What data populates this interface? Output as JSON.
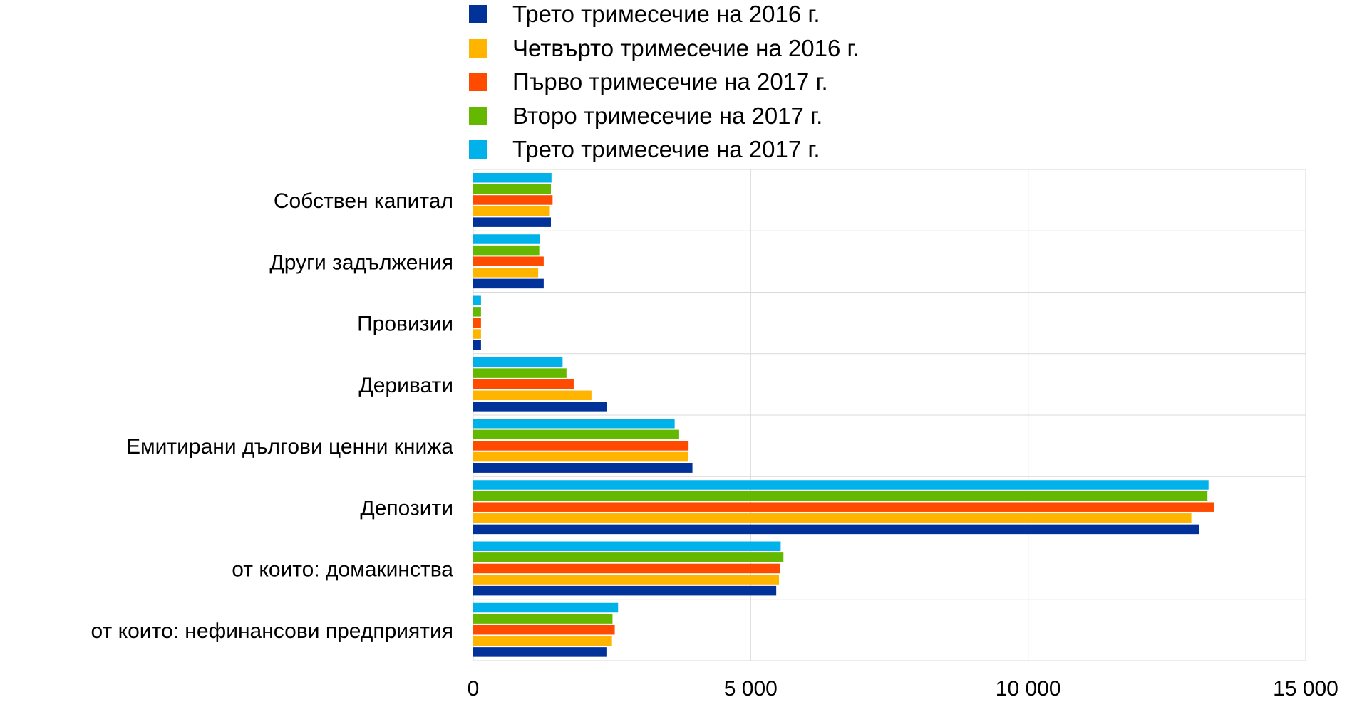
{
  "chart_data": {
    "type": "bar",
    "orientation": "horizontal",
    "title": "",
    "xlabel": "",
    "ylabel": "",
    "xlim": [
      0,
      15000
    ],
    "grid": true,
    "legend_position": "top",
    "categories": [
      "Собствен капитал",
      "Други задължения",
      "Провизии",
      "Деривати",
      "Емитирани дългови ценни книжа",
      "Депозити",
      "от които: домакинства",
      "от които: нефинансови предприятия"
    ],
    "x_tick_labels": [
      "0",
      "5 000",
      "10 000",
      "15 000"
    ],
    "x_ticks": [
      0,
      5000,
      10000,
      15000
    ],
    "series": [
      {
        "name": "Трето тримесечие на 2016 г.",
        "color": "#003299",
        "values": [
          1400,
          1270,
          140,
          2410,
          3950,
          13080,
          5460,
          2400
        ]
      },
      {
        "name": "Четвърто тримесечие на 2016 г.",
        "color": "#FFB400",
        "values": [
          1380,
          1170,
          140,
          2130,
          3870,
          12940,
          5510,
          2500
        ]
      },
      {
        "name": "Първо тримесечие на 2017 г.",
        "color": "#FF4B00",
        "values": [
          1430,
          1270,
          140,
          1810,
          3880,
          13350,
          5530,
          2550
        ]
      },
      {
        "name": "Второ тримесечие на 2017 г.",
        "color": "#65B800",
        "values": [
          1400,
          1190,
          140,
          1680,
          3710,
          13230,
          5590,
          2510
        ]
      },
      {
        "name": "Трето тримесечие на 2017 г.",
        "color": "#00B1EA",
        "values": [
          1410,
          1200,
          140,
          1610,
          3630,
          13250,
          5540,
          2610
        ]
      }
    ]
  }
}
